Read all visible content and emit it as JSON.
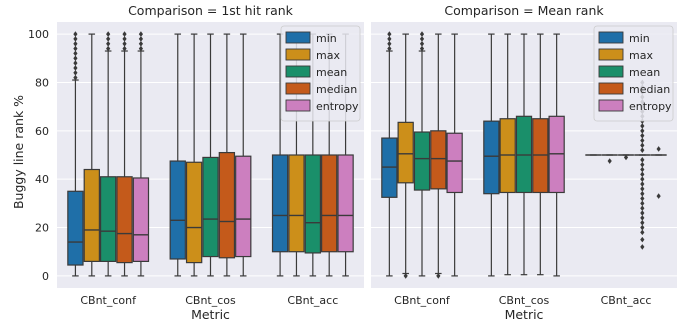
{
  "figure": {
    "ylabel": "Buggy line rank %",
    "xlabel": "Metric",
    "palette": {
      "panel_bg": "#eaeaf2",
      "grid": "#ffffff",
      "box_edge": "#3a3a3a",
      "min": "#1f6fa8",
      "max": "#cc8f1a",
      "mean": "#1a8f6a",
      "median": "#c45a1b",
      "entropy": "#cc7fbf"
    }
  },
  "chart_data": [
    {
      "type": "box",
      "title": "Comparison = 1st hit rank",
      "categories": [
        "CBnt_conf",
        "CBnt_cos",
        "CBnt_acc"
      ],
      "ylim": [
        -5,
        105
      ],
      "yticks": [
        0,
        20,
        40,
        60,
        80,
        100
      ],
      "grid": true,
      "legend": {
        "position": "top-right",
        "entries": [
          "min",
          "max",
          "mean",
          "median",
          "entropy"
        ]
      },
      "series": [
        {
          "name": "min",
          "boxes": [
            {
              "whislo": 0,
              "q1": 4.5,
              "med": 14,
              "q3": 35,
              "whishi": 81,
              "fliers": [
                82,
                84,
                86,
                88,
                90,
                92,
                94,
                96,
                98,
                100
              ]
            },
            {
              "whislo": 0,
              "q1": 7,
              "med": 23,
              "q3": 47.5,
              "whishi": 100,
              "fliers": []
            },
            {
              "whislo": 0,
              "q1": 10,
              "med": 25,
              "q3": 50,
              "whishi": 100,
              "fliers": []
            }
          ]
        },
        {
          "name": "max",
          "boxes": [
            {
              "whislo": 0,
              "q1": 6,
              "med": 19,
              "q3": 44,
              "whishi": 100,
              "fliers": []
            },
            {
              "whislo": 0,
              "q1": 5.5,
              "med": 20,
              "q3": 47,
              "whishi": 100,
              "fliers": []
            },
            {
              "whislo": 0,
              "q1": 10,
              "med": 25,
              "q3": 50,
              "whishi": 100,
              "fliers": []
            }
          ]
        },
        {
          "name": "mean",
          "boxes": [
            {
              "whislo": 0,
              "q1": 6,
              "med": 18.5,
              "q3": 41,
              "whishi": 93,
              "fliers": [
                94,
                96,
                98,
                100
              ]
            },
            {
              "whislo": 0,
              "q1": 8,
              "med": 23.5,
              "q3": 49,
              "whishi": 100,
              "fliers": []
            },
            {
              "whislo": 0,
              "q1": 9.5,
              "med": 22,
              "q3": 50,
              "whishi": 100,
              "fliers": []
            }
          ]
        },
        {
          "name": "median",
          "boxes": [
            {
              "whislo": 0,
              "q1": 5.5,
              "med": 17.5,
              "q3": 41,
              "whishi": 93,
              "fliers": [
                94,
                96,
                98,
                100
              ]
            },
            {
              "whislo": 0,
              "q1": 7.5,
              "med": 22.5,
              "q3": 51,
              "whishi": 100,
              "fliers": []
            },
            {
              "whislo": 0,
              "q1": 10,
              "med": 25,
              "q3": 50,
              "whishi": 100,
              "fliers": []
            }
          ]
        },
        {
          "name": "entropy",
          "boxes": [
            {
              "whislo": 0,
              "q1": 6,
              "med": 17,
              "q3": 40.5,
              "whishi": 93,
              "fliers": [
                94,
                96,
                98,
                100
              ]
            },
            {
              "whislo": 0,
              "q1": 8,
              "med": 23.5,
              "q3": 49.5,
              "whishi": 100,
              "fliers": []
            },
            {
              "whislo": 0,
              "q1": 10,
              "med": 25,
              "q3": 50,
              "whishi": 100,
              "fliers": []
            }
          ]
        }
      ]
    },
    {
      "type": "box",
      "title": "Comparison = Mean rank",
      "categories": [
        "CBnt_conf",
        "CBnt_cos",
        "CBnt_acc"
      ],
      "ylim": [
        -5,
        105
      ],
      "yticks": [
        0,
        20,
        40,
        60,
        80,
        100
      ],
      "grid": true,
      "legend": {
        "position": "top-right",
        "entries": [
          "min",
          "max",
          "mean",
          "median",
          "entropy"
        ]
      },
      "series": [
        {
          "name": "min",
          "boxes": [
            {
              "whislo": 0,
              "q1": 32.5,
              "med": 45,
              "q3": 57,
              "whishi": 93,
              "fliers": [
                94,
                96,
                98,
                100
              ]
            },
            {
              "whislo": 0,
              "q1": 34,
              "med": 49.5,
              "q3": 64,
              "whishi": 100,
              "fliers": []
            },
            {
              "whislo": 50,
              "q1": 50,
              "med": 50,
              "q3": 50,
              "whishi": 50,
              "fliers": []
            }
          ]
        },
        {
          "name": "max",
          "boxes": [
            {
              "whislo": 1,
              "q1": 38.5,
              "med": 50.5,
              "q3": 63.5,
              "whishi": 100,
              "fliers": [
                0
              ]
            },
            {
              "whislo": 0.5,
              "q1": 34.5,
              "med": 50,
              "q3": 65,
              "whishi": 100,
              "fliers": []
            },
            {
              "whislo": 50,
              "q1": 50,
              "med": 50,
              "q3": 50,
              "whishi": 50,
              "fliers": [
                47.5
              ]
            }
          ]
        },
        {
          "name": "mean",
          "boxes": [
            {
              "whislo": 0,
              "q1": 35.5,
              "med": 48.5,
              "q3": 59.5,
              "whishi": 93,
              "fliers": [
                94,
                96,
                98,
                100
              ]
            },
            {
              "whislo": 0.5,
              "q1": 34.5,
              "med": 50,
              "q3": 66,
              "whishi": 100,
              "fliers": []
            },
            {
              "whislo": 50,
              "q1": 50,
              "med": 50,
              "q3": 50,
              "whishi": 50,
              "fliers": [
                49
              ]
            }
          ]
        },
        {
          "name": "median",
          "boxes": [
            {
              "whislo": 1,
              "q1": 36,
              "med": 48.5,
              "q3": 60,
              "whishi": 100,
              "fliers": [
                0
              ]
            },
            {
              "whislo": 0.5,
              "q1": 34.5,
              "med": 50,
              "q3": 65,
              "whishi": 100,
              "fliers": []
            },
            {
              "whislo": 50,
              "q1": 50,
              "med": 50,
              "q3": 50,
              "whishi": 50,
              "fliers": [
                12,
                15,
                18,
                20,
                22,
                24,
                26,
                28,
                30,
                32,
                34,
                36,
                38,
                40,
                42,
                44,
                46,
                48,
                52,
                54,
                56,
                58,
                60,
                62,
                64,
                66,
                68,
                70,
                72,
                74,
                76,
                78,
                80
              ]
            }
          ]
        },
        {
          "name": "entropy",
          "boxes": [
            {
              "whislo": 0,
              "q1": 34.5,
              "med": 47.5,
              "q3": 59,
              "whishi": 100,
              "fliers": []
            },
            {
              "whislo": 0,
              "q1": 34.5,
              "med": 50.5,
              "q3": 66,
              "whishi": 100,
              "fliers": []
            },
            {
              "whislo": 50,
              "q1": 50,
              "med": 50,
              "q3": 50,
              "whishi": 50,
              "fliers": [
                33,
                52.5
              ]
            }
          ]
        }
      ]
    }
  ]
}
